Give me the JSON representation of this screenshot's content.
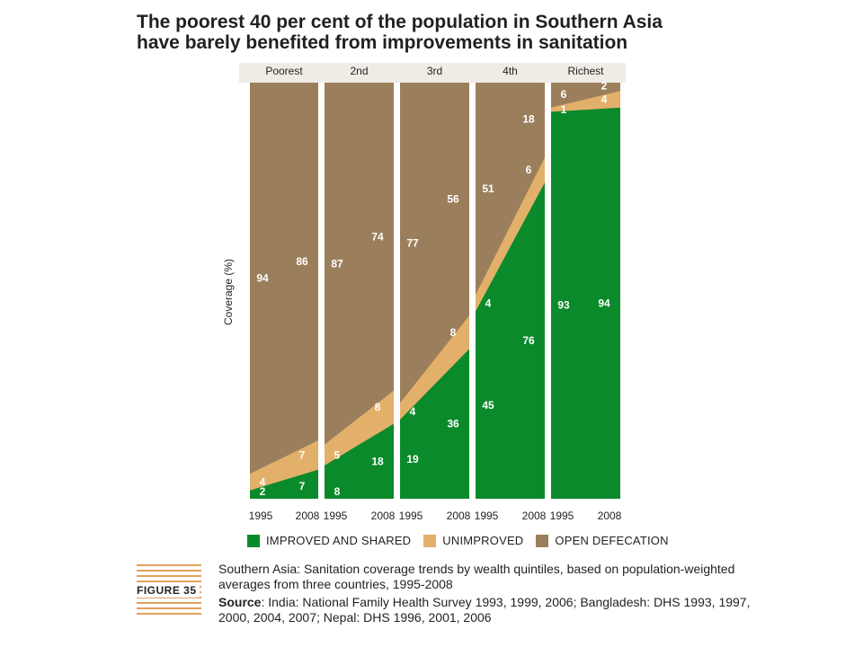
{
  "title_lines": [
    "The poorest 40 per cent of the population in Southern Asia",
    "have barely benefited from improvements in sanitation"
  ],
  "colors": {
    "improved": "#0a8a2a",
    "unimproved": "#e2b06a",
    "open": "#9b7f5c",
    "background_band": "#efece5"
  },
  "chart_data": {
    "type": "area",
    "ylabel": "Coverage (%)",
    "ylim": [
      0,
      100
    ],
    "panels": [
      {
        "name": "Poorest",
        "years": [
          "1995",
          "2008"
        ],
        "improved": [
          2,
          7
        ],
        "unimproved": [
          4,
          7
        ],
        "open": [
          94,
          86
        ]
      },
      {
        "name": "2nd",
        "years": [
          "1995",
          "2008"
        ],
        "improved": [
          8,
          18
        ],
        "unimproved": [
          5,
          8
        ],
        "open": [
          87,
          74
        ]
      },
      {
        "name": "3rd",
        "years": [
          "1995",
          "2008"
        ],
        "improved": [
          19,
          36
        ],
        "unimproved": [
          4,
          8
        ],
        "open": [
          77,
          56
        ]
      },
      {
        "name": "4th",
        "years": [
          "1995",
          "2008"
        ],
        "improved": [
          45,
          76
        ],
        "unimproved": [
          4,
          6
        ],
        "open": [
          51,
          18
        ]
      },
      {
        "name": "Richest",
        "years": [
          "1995",
          "2008"
        ],
        "improved": [
          93,
          94
        ],
        "unimproved": [
          1,
          4
        ],
        "open": [
          6,
          2
        ]
      }
    ],
    "legend": [
      "IMPROVED AND SHARED",
      "UNIMPROVED",
      "OPEN DEFECATION"
    ]
  },
  "figure_label": "FIGURE 35",
  "caption": "Southern Asia: Sanitation coverage trends by wealth quintiles, based on population-weighted averages from three countries, 1995-2008",
  "source_label": "Source",
  "source_text": ": India: National Family Health Survey 1993, 1999, 2006; Bangladesh: DHS 1993, 1997, 2000, 2004, 2007; Nepal: DHS 1996, 2001, 2006"
}
